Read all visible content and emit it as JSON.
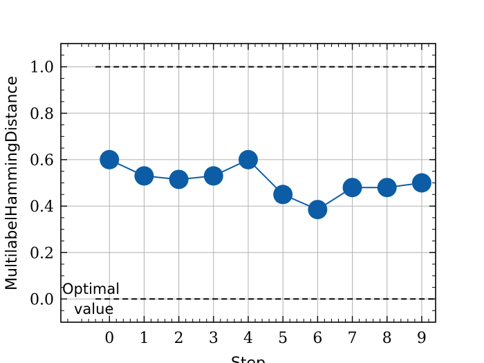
{
  "chart_data": {
    "type": "line",
    "xlabel": "Step",
    "ylabel": "MultilabelHammingDistance",
    "xlim": [
      -1.4,
      9.4
    ],
    "ylim": [
      -0.1,
      1.1
    ],
    "x_ticks": [
      0,
      1,
      2,
      3,
      4,
      5,
      6,
      7,
      8,
      9
    ],
    "y_ticks": [
      0.0,
      0.2,
      0.4,
      0.6,
      0.8,
      1.0
    ],
    "y_tick_labels": [
      "0.0",
      "0.2",
      "0.4",
      "0.6",
      "0.8",
      "1.0"
    ],
    "grid": true,
    "series": [
      {
        "x": [
          0,
          1,
          2,
          3,
          4,
          5,
          6,
          7,
          8,
          9
        ],
        "values": [
          0.6,
          0.53,
          0.515,
          0.53,
          0.6,
          0.45,
          0.385,
          0.48,
          0.48,
          0.5
        ],
        "color": "#0c5da5"
      }
    ],
    "reference_lines": [
      {
        "y": 1.0,
        "x_start": -0.4,
        "style": "dashed",
        "color": "#000000"
      },
      {
        "y": 0.0,
        "x_start": -0.4,
        "style": "dashed",
        "color": "#000000"
      }
    ],
    "annotation": {
      "line1": "Optimal",
      "line2": "value"
    }
  }
}
